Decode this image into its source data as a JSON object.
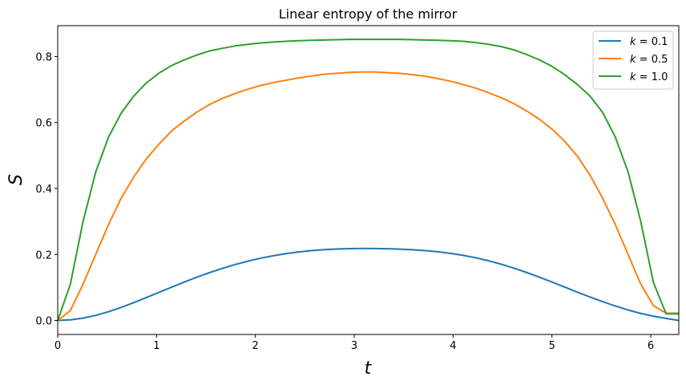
{
  "chart_data": {
    "type": "line",
    "title": "Linear entropy of the mirror",
    "xlabel": "t",
    "ylabel": "S",
    "xlim": [
      0,
      6.2832
    ],
    "ylim": [
      -0.0425,
      0.8935
    ],
    "xticks": [
      0,
      1,
      2,
      3,
      4,
      5,
      6
    ],
    "yticks": [
      0.0,
      0.2,
      0.4,
      0.6,
      0.8
    ],
    "ytick_labels": [
      "0.0",
      "0.2",
      "0.4",
      "0.6",
      "0.8"
    ],
    "grid": false,
    "legend_position": "top-right",
    "x": [
      0,
      0.1282,
      0.2565,
      0.3847,
      0.5129,
      0.6411,
      0.7694,
      0.8976,
      1.0258,
      1.1541,
      1.2823,
      1.4105,
      1.5387,
      1.667,
      1.7952,
      1.9234,
      2.0517,
      2.1799,
      2.3081,
      2.4363,
      2.5646,
      2.6928,
      2.821,
      2.9493,
      3.0775,
      3.2057,
      3.3339,
      3.4622,
      3.5904,
      3.7186,
      3.8469,
      3.9751,
      4.1033,
      4.2315,
      4.3598,
      4.488,
      4.6162,
      4.7445,
      4.8727,
      5.0009,
      5.1291,
      5.2574,
      5.3856,
      5.5138,
      5.6421,
      5.7703,
      5.8985,
      6.0267,
      6.155,
      6.2832
    ],
    "series": [
      {
        "name": "k = 0.1",
        "label_k": "k",
        "label_val": " = 0.1",
        "color": "#1f77b4",
        "values": [
          0.0,
          0.0018,
          0.0071,
          0.0154,
          0.0264,
          0.0394,
          0.0539,
          0.0694,
          0.0853,
          0.1012,
          0.1167,
          0.1315,
          0.1453,
          0.158,
          0.1695,
          0.1797,
          0.1886,
          0.1961,
          0.2024,
          0.2075,
          0.2115,
          0.2145,
          0.2165,
          0.2176,
          0.2181,
          0.2179,
          0.2172,
          0.216,
          0.2142,
          0.2116,
          0.2081,
          0.2033,
          0.1973,
          0.1898,
          0.1808,
          0.1703,
          0.1584,
          0.1453,
          0.1312,
          0.1164,
          0.1012,
          0.086,
          0.0711,
          0.0569,
          0.0436,
          0.0317,
          0.0213,
          0.0128,
          0.0061,
          0.0
        ]
      },
      {
        "name": "k = 0.5",
        "label_k": "k",
        "label_val": " = 0.5",
        "color": "#ff7f0e",
        "values": [
          0.0,
          0.03,
          0.11,
          0.2,
          0.29,
          0.37,
          0.435,
          0.49,
          0.535,
          0.575,
          0.605,
          0.632,
          0.655,
          0.673,
          0.688,
          0.701,
          0.712,
          0.721,
          0.728,
          0.735,
          0.741,
          0.746,
          0.749,
          0.752,
          0.753,
          0.753,
          0.751,
          0.749,
          0.745,
          0.74,
          0.733,
          0.725,
          0.715,
          0.704,
          0.69,
          0.675,
          0.657,
          0.635,
          0.61,
          0.58,
          0.543,
          0.498,
          0.44,
          0.37,
          0.29,
          0.2,
          0.11,
          0.045,
          0.022,
          0.022
        ]
      },
      {
        "name": "k = 1.0",
        "label_k": "k",
        "label_val": " = 1.0",
        "color": "#2ca02c",
        "values": [
          0.0,
          0.11,
          0.3,
          0.45,
          0.555,
          0.628,
          0.68,
          0.72,
          0.75,
          0.773,
          0.79,
          0.805,
          0.817,
          0.825,
          0.832,
          0.837,
          0.841,
          0.844,
          0.846,
          0.848,
          0.849,
          0.85,
          0.851,
          0.852,
          0.852,
          0.852,
          0.852,
          0.852,
          0.851,
          0.85,
          0.849,
          0.848,
          0.846,
          0.842,
          0.837,
          0.83,
          0.82,
          0.806,
          0.79,
          0.77,
          0.745,
          0.715,
          0.68,
          0.63,
          0.555,
          0.45,
          0.3,
          0.115,
          0.02,
          0.02
        ]
      }
    ]
  }
}
